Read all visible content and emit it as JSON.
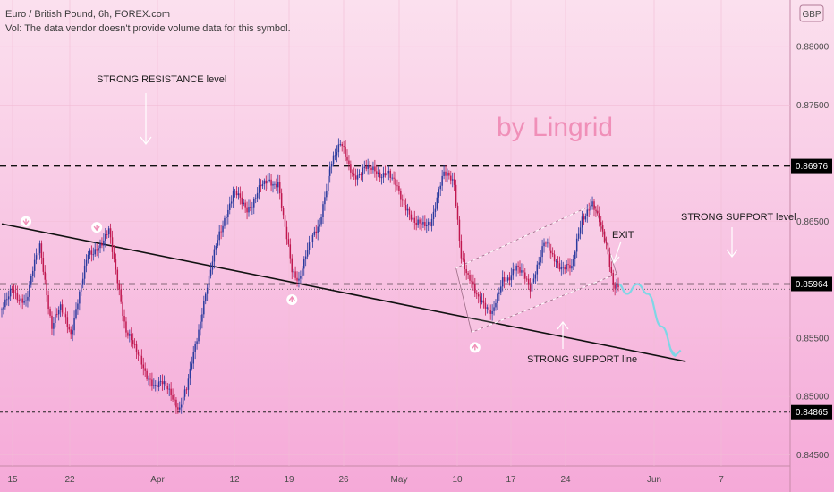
{
  "header": {
    "symbol_line": "Euro / British Pound, 6h, FOREX.com",
    "volume_note": "Vol: The data vendor doesn't provide volume data for this symbol."
  },
  "currency_badge": "GBP",
  "watermark": "by Lingrid",
  "annotations": {
    "resistance_level": "STRONG RESISTANCE level",
    "support_level": "STRONG SUPPORT level",
    "support_line": "STRONG SUPPORT line",
    "exit": "EXIT"
  },
  "colors": {
    "bull": "#2b3a9e",
    "bear": "#c0174f",
    "background_top": "#fbe0ee",
    "background_bottom": "#f5a9d8",
    "projection": "#7fd6e6",
    "label_bg": "#000000"
  },
  "chart_data": {
    "type": "candlestick",
    "ylim": [
      0.8418,
      0.884
    ],
    "y_ticks": [
      "0.88000",
      "0.87500",
      "0.86500",
      "0.85500",
      "0.85000",
      "0.84500"
    ],
    "x_ticks": [
      "15",
      "22",
      "Apr",
      "12",
      "19",
      "26",
      "May",
      "10",
      "17",
      "24",
      "Jun",
      "7"
    ],
    "price_labels": [
      "0.86976",
      "0.85964",
      "0.84865"
    ],
    "horizontal_levels": [
      {
        "value": 0.86976,
        "style": "dashed"
      },
      {
        "value": 0.85964,
        "style": "dashed"
      },
      {
        "value": 0.84865,
        "style": "dashed-thin"
      },
      {
        "value": 0.8592,
        "style": "dotted"
      }
    ],
    "anchors": [
      {
        "x": 0,
        "y": 0.8574
      },
      {
        "x": 6,
        "y": 0.859
      },
      {
        "x": 14,
        "y": 0.8582
      },
      {
        "x": 22,
        "y": 0.863
      },
      {
        "x": 29,
        "y": 0.856
      },
      {
        "x": 34,
        "y": 0.8575
      },
      {
        "x": 40,
        "y": 0.8556
      },
      {
        "x": 50,
        "y": 0.862
      },
      {
        "x": 62,
        "y": 0.864
      },
      {
        "x": 72,
        "y": 0.8558
      },
      {
        "x": 80,
        "y": 0.853
      },
      {
        "x": 88,
        "y": 0.851
      },
      {
        "x": 96,
        "y": 0.8508
      },
      {
        "x": 103,
        "y": 0.849
      },
      {
        "x": 107,
        "y": 0.8505
      },
      {
        "x": 116,
        "y": 0.8575
      },
      {
        "x": 126,
        "y": 0.864
      },
      {
        "x": 134,
        "y": 0.8675
      },
      {
        "x": 142,
        "y": 0.866
      },
      {
        "x": 150,
        "y": 0.868
      },
      {
        "x": 160,
        "y": 0.8685
      },
      {
        "x": 168,
        "y": 0.8605
      },
      {
        "x": 172,
        "y": 0.86
      },
      {
        "x": 176,
        "y": 0.8625
      },
      {
        "x": 184,
        "y": 0.8645
      },
      {
        "x": 190,
        "y": 0.87
      },
      {
        "x": 196,
        "y": 0.8715
      },
      {
        "x": 204,
        "y": 0.869
      },
      {
        "x": 214,
        "y": 0.8695
      },
      {
        "x": 224,
        "y": 0.869
      },
      {
        "x": 232,
        "y": 0.867
      },
      {
        "x": 240,
        "y": 0.8645
      },
      {
        "x": 248,
        "y": 0.865
      },
      {
        "x": 256,
        "y": 0.869
      },
      {
        "x": 262,
        "y": 0.8685
      },
      {
        "x": 266,
        "y": 0.862
      },
      {
        "x": 270,
        "y": 0.86
      },
      {
        "x": 274,
        "y": 0.859
      },
      {
        "x": 280,
        "y": 0.858
      },
      {
        "x": 284,
        "y": 0.8568
      },
      {
        "x": 290,
        "y": 0.86
      },
      {
        "x": 298,
        "y": 0.861
      },
      {
        "x": 306,
        "y": 0.8595
      },
      {
        "x": 314,
        "y": 0.863
      },
      {
        "x": 322,
        "y": 0.8615
      },
      {
        "x": 330,
        "y": 0.8608
      },
      {
        "x": 336,
        "y": 0.8655
      },
      {
        "x": 342,
        "y": 0.8665
      },
      {
        "x": 346,
        "y": 0.8648
      },
      {
        "x": 350,
        "y": 0.8632
      },
      {
        "x": 354,
        "y": 0.8598
      },
      {
        "x": 357,
        "y": 0.8593
      }
    ],
    "trendline": {
      "x1": 0,
      "y1": 0.8648,
      "x2": 396,
      "y2": 0.853
    },
    "channel": {
      "lower": {
        "x1": 272,
        "y1": 0.8555,
        "x2": 356,
        "y2": 0.8605
      },
      "upper": {
        "x1": 263,
        "y1": 0.861,
        "x2": 343,
        "y2": 0.8665
      }
    },
    "projection_path": [
      {
        "x": 357,
        "y": 0.85964
      },
      {
        "x": 362,
        "y": 0.8588
      },
      {
        "x": 368,
        "y": 0.85964
      },
      {
        "x": 374,
        "y": 0.8588
      },
      {
        "x": 382,
        "y": 0.856
      },
      {
        "x": 390,
        "y": 0.8535
      }
    ],
    "down_arrows": [
      {
        "x": 14,
        "y": 0.865
      },
      {
        "x": 55,
        "y": 0.8645
      }
    ],
    "up_arrows": [
      {
        "x": 168,
        "y": 0.8583
      },
      {
        "x": 274,
        "y": 0.8542
      }
    ]
  }
}
